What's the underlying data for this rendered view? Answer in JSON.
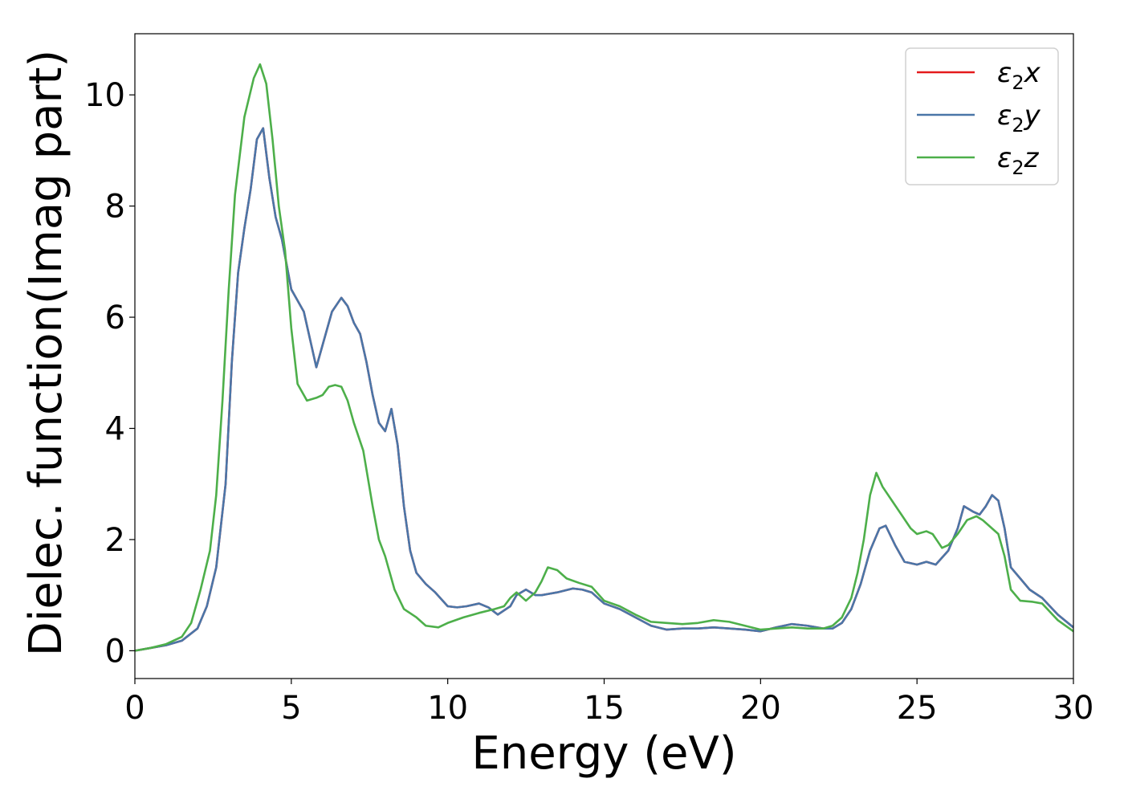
{
  "chart_data": {
    "type": "line",
    "title": "",
    "xlabel": "Energy (eV)",
    "ylabel": "Dielec. function(Imag part)",
    "xlim": [
      0,
      30
    ],
    "ylim": [
      -0.5,
      11.1
    ],
    "xticks": [
      0,
      5,
      10,
      15,
      20,
      25,
      30
    ],
    "yticks": [
      0,
      2,
      4,
      6,
      8,
      10
    ],
    "grid": false,
    "legend_position": "top-right",
    "series": [
      {
        "name": "ε2x",
        "legend_base": "ε",
        "legend_sub": "2",
        "legend_tail": "x",
        "color": "#e41a1c",
        "x": [
          0,
          0.5,
          1,
          1.5,
          2,
          2.3,
          2.6,
          2.9,
          3.1,
          3.3,
          3.5,
          3.7,
          3.9,
          4.1,
          4.3,
          4.5,
          4.7,
          5,
          5.2,
          5.4,
          5.6,
          5.8,
          6,
          6.3,
          6.6,
          6.8,
          7,
          7.2,
          7.4,
          7.6,
          7.8,
          8,
          8.2,
          8.4,
          8.6,
          8.8,
          9,
          9.3,
          9.6,
          10,
          10.3,
          10.6,
          11,
          11.3,
          11.6,
          12,
          12.2,
          12.5,
          12.8,
          13,
          13.2,
          13.5,
          14,
          14.3,
          14.6,
          15,
          15.5,
          16,
          16.5,
          17,
          17.5,
          18,
          18.5,
          19,
          19.5,
          20,
          20.5,
          21,
          21.5,
          22,
          22.3,
          22.6,
          22.9,
          23.2,
          23.5,
          23.8,
          24,
          24.3,
          24.6,
          25,
          25.3,
          25.6,
          26,
          26.3,
          26.5,
          26.8,
          27,
          27.2,
          27.4,
          27.6,
          27.8,
          28,
          28.3,
          28.6,
          29,
          29.5,
          30
        ],
        "y": [
          0,
          0.05,
          0.1,
          0.18,
          0.4,
          0.8,
          1.5,
          3,
          5.2,
          6.8,
          7.6,
          8.3,
          9.2,
          9.4,
          8.5,
          7.8,
          7.4,
          6.5,
          6.3,
          6.1,
          5.6,
          5.1,
          5.5,
          6.1,
          6.35,
          6.2,
          5.9,
          5.7,
          5.2,
          4.6,
          4.1,
          3.95,
          4.35,
          3.7,
          2.6,
          1.8,
          1.4,
          1.2,
          1.05,
          0.8,
          0.78,
          0.8,
          0.85,
          0.78,
          0.65,
          0.8,
          1.0,
          1.1,
          1.0,
          1.0,
          1.02,
          1.05,
          1.12,
          1.1,
          1.05,
          0.85,
          0.75,
          0.6,
          0.45,
          0.38,
          0.4,
          0.4,
          0.42,
          0.4,
          0.38,
          0.35,
          0.42,
          0.48,
          0.45,
          0.4,
          0.4,
          0.5,
          0.75,
          1.2,
          1.8,
          2.2,
          2.25,
          1.9,
          1.6,
          1.55,
          1.6,
          1.55,
          1.8,
          2.2,
          2.6,
          2.5,
          2.45,
          2.6,
          2.8,
          2.7,
          2.2,
          1.5,
          1.3,
          1.1,
          0.95,
          0.65,
          0.42
        ]
      },
      {
        "name": "ε2y",
        "legend_base": "ε",
        "legend_sub": "2",
        "legend_tail": "y",
        "color": "#4a76a8",
        "x": [
          0,
          0.5,
          1,
          1.5,
          2,
          2.3,
          2.6,
          2.9,
          3.1,
          3.3,
          3.5,
          3.7,
          3.9,
          4.1,
          4.3,
          4.5,
          4.7,
          5,
          5.2,
          5.4,
          5.6,
          5.8,
          6,
          6.3,
          6.6,
          6.8,
          7,
          7.2,
          7.4,
          7.6,
          7.8,
          8,
          8.2,
          8.4,
          8.6,
          8.8,
          9,
          9.3,
          9.6,
          10,
          10.3,
          10.6,
          11,
          11.3,
          11.6,
          12,
          12.2,
          12.5,
          12.8,
          13,
          13.2,
          13.5,
          14,
          14.3,
          14.6,
          15,
          15.5,
          16,
          16.5,
          17,
          17.5,
          18,
          18.5,
          19,
          19.5,
          20,
          20.5,
          21,
          21.5,
          22,
          22.3,
          22.6,
          22.9,
          23.2,
          23.5,
          23.8,
          24,
          24.3,
          24.6,
          25,
          25.3,
          25.6,
          26,
          26.3,
          26.5,
          26.8,
          27,
          27.2,
          27.4,
          27.6,
          27.8,
          28,
          28.3,
          28.6,
          29,
          29.5,
          30
        ],
        "y": [
          0,
          0.05,
          0.1,
          0.18,
          0.4,
          0.8,
          1.5,
          3,
          5.2,
          6.8,
          7.6,
          8.3,
          9.2,
          9.4,
          8.5,
          7.8,
          7.4,
          6.5,
          6.3,
          6.1,
          5.6,
          5.1,
          5.5,
          6.1,
          6.35,
          6.2,
          5.9,
          5.7,
          5.2,
          4.6,
          4.1,
          3.95,
          4.35,
          3.7,
          2.6,
          1.8,
          1.4,
          1.2,
          1.05,
          0.8,
          0.78,
          0.8,
          0.85,
          0.78,
          0.65,
          0.8,
          1.0,
          1.1,
          1.0,
          1.0,
          1.02,
          1.05,
          1.12,
          1.1,
          1.05,
          0.85,
          0.75,
          0.6,
          0.45,
          0.38,
          0.4,
          0.4,
          0.42,
          0.4,
          0.38,
          0.35,
          0.42,
          0.48,
          0.45,
          0.4,
          0.4,
          0.5,
          0.75,
          1.2,
          1.8,
          2.2,
          2.25,
          1.9,
          1.6,
          1.55,
          1.6,
          1.55,
          1.8,
          2.2,
          2.6,
          2.5,
          2.45,
          2.6,
          2.8,
          2.7,
          2.2,
          1.5,
          1.3,
          1.1,
          0.95,
          0.65,
          0.42
        ]
      },
      {
        "name": "ε2z",
        "legend_base": "ε",
        "legend_sub": "2",
        "legend_tail": "z",
        "color": "#4daf4a",
        "x": [
          0,
          0.5,
          1,
          1.5,
          1.8,
          2.1,
          2.4,
          2.6,
          2.8,
          3,
          3.2,
          3.5,
          3.8,
          4,
          4.2,
          4.4,
          4.6,
          4.8,
          5,
          5.2,
          5.5,
          5.8,
          6,
          6.2,
          6.4,
          6.6,
          6.8,
          7,
          7.3,
          7.6,
          7.8,
          8,
          8.3,
          8.6,
          9,
          9.3,
          9.7,
          10,
          10.5,
          11,
          11.5,
          11.8,
          12,
          12.2,
          12.5,
          12.8,
          13,
          13.2,
          13.5,
          13.8,
          14.2,
          14.6,
          15,
          15.5,
          16,
          16.5,
          17,
          17.5,
          18,
          18.5,
          19,
          19.5,
          20,
          20.5,
          21,
          21.5,
          22,
          22.3,
          22.6,
          22.9,
          23.1,
          23.3,
          23.5,
          23.7,
          23.9,
          24.2,
          24.5,
          24.8,
          25,
          25.3,
          25.5,
          25.8,
          26,
          26.3,
          26.6,
          26.9,
          27.1,
          27.3,
          27.6,
          27.8,
          28,
          28.3,
          28.7,
          29,
          29.5,
          30
        ],
        "y": [
          0,
          0.05,
          0.12,
          0.25,
          0.5,
          1.1,
          1.8,
          2.8,
          4.5,
          6.5,
          8.2,
          9.6,
          10.3,
          10.55,
          10.2,
          9.2,
          8.0,
          7.2,
          5.8,
          4.8,
          4.5,
          4.55,
          4.6,
          4.75,
          4.78,
          4.75,
          4.5,
          4.1,
          3.6,
          2.6,
          2.0,
          1.7,
          1.1,
          0.75,
          0.6,
          0.45,
          0.42,
          0.5,
          0.6,
          0.68,
          0.75,
          0.8,
          0.95,
          1.05,
          0.9,
          1.05,
          1.25,
          1.5,
          1.45,
          1.3,
          1.22,
          1.15,
          0.9,
          0.8,
          0.65,
          0.52,
          0.5,
          0.48,
          0.5,
          0.55,
          0.52,
          0.45,
          0.38,
          0.4,
          0.42,
          0.4,
          0.4,
          0.45,
          0.6,
          0.95,
          1.4,
          2.0,
          2.8,
          3.2,
          2.95,
          2.7,
          2.45,
          2.2,
          2.1,
          2.15,
          2.1,
          1.85,
          1.9,
          2.1,
          2.35,
          2.42,
          2.35,
          2.25,
          2.1,
          1.7,
          1.1,
          0.9,
          0.88,
          0.85,
          0.55,
          0.35
        ]
      }
    ]
  }
}
